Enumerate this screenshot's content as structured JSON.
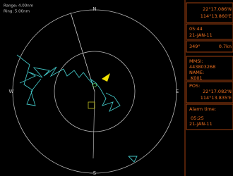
{
  "radar": {
    "range": "Range: 4.00nm",
    "ring": "Ring: 5.00nm",
    "compass": {
      "n": "N",
      "e": "E",
      "s": "S",
      "w": "W"
    }
  },
  "own": {
    "lat": "22°17.086'N",
    "lon": "114°13.860'E",
    "time": "05:44",
    "date": "21-JAN-11",
    "course": "349°",
    "speed": "0.7kn"
  },
  "target": {
    "mmsi_label": "MMSI:",
    "mmsi": "443803268",
    "name_label": "NAME:",
    "name": "K001",
    "pos_label": "POS:",
    "lat": "22°17.082'N",
    "lon": "114°13.835'E",
    "alarm_label": "Alarm time:",
    "alarm_time": "05:25",
    "alarm_date": "21-JAN-11"
  }
}
